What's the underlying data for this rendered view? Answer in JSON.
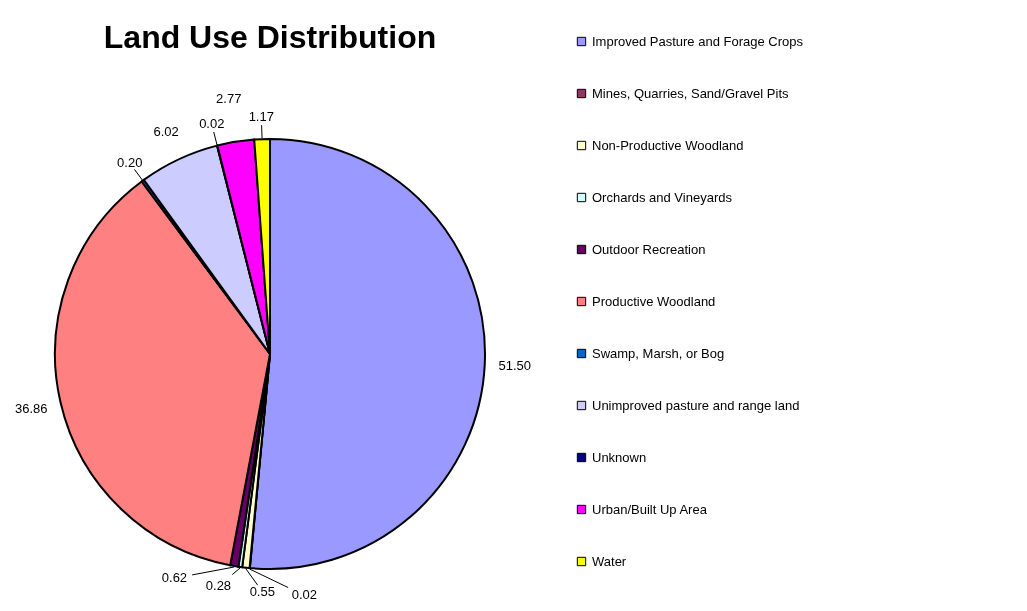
{
  "chart_data": {
    "type": "pie",
    "title": "Land Use Distribution",
    "categories": [
      "Improved Pasture and Forage Crops",
      "Mines, Quarries, Sand/Gravel Pits",
      "Non-Productive Woodland",
      "Orchards and Vineyards",
      "Outdoor Recreation",
      "Productive Woodland",
      "Swamp, Marsh, or Bog",
      "Unimproved pasture and range land",
      "Unknown",
      "Urban/Built Up Area",
      "Water"
    ],
    "values": [
      51.5,
      0.02,
      0.55,
      0.28,
      0.62,
      36.86,
      0.2,
      6.02,
      0.02,
      2.77,
      1.17
    ],
    "colors": [
      "#9999ff",
      "#993366",
      "#ffffcc",
      "#ccffff",
      "#660066",
      "#ff8080",
      "#0066cc",
      "#ccccff",
      "#000080",
      "#ff00ff",
      "#ffff00"
    ],
    "value_labels": [
      "51.50",
      "0.02",
      "0.55",
      "0.28",
      "0.62",
      "36.86",
      "0.20",
      "6.02",
      "0.02",
      "2.77",
      "1.17"
    ],
    "legend": "right"
  }
}
